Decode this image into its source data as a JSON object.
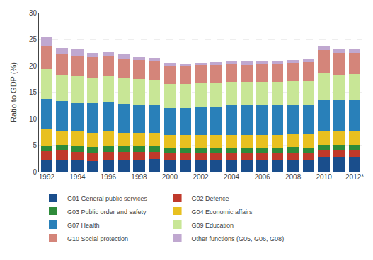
{
  "chart_data": {
    "type": "bar",
    "stacked": true,
    "ylabel": "Ratio to GDP (%)",
    "categories": [
      "1992",
      null,
      "1994",
      null,
      "1996",
      null,
      "1998",
      null,
      "2000",
      null,
      "2002",
      null,
      "2004",
      null,
      "2006",
      null,
      "2008",
      null,
      "2010",
      null,
      "2012*"
    ],
    "series": [
      {
        "name": "G01 General public services",
        "color": "#1A4E8C",
        "values": [
          2.1,
          2.2,
          2.2,
          2.0,
          2.2,
          2.2,
          2.3,
          2.4,
          2.3,
          2.3,
          2.3,
          2.3,
          2.3,
          2.3,
          2.3,
          2.3,
          2.3,
          2.3,
          2.8,
          2.8,
          2.8
        ]
      },
      {
        "name": "G02 Defence",
        "color": "#C0392B",
        "values": [
          1.8,
          1.8,
          1.6,
          1.6,
          1.6,
          1.6,
          1.5,
          1.4,
          1.3,
          1.3,
          1.3,
          1.3,
          1.3,
          1.3,
          1.3,
          1.3,
          1.3,
          1.2,
          1.2,
          1.2,
          1.2
        ]
      },
      {
        "name": "G03 Public order and safety",
        "color": "#2E8B3A",
        "values": [
          1.1,
          1.1,
          1.1,
          1.1,
          1.1,
          1.0,
          1.0,
          1.0,
          1.0,
          1.0,
          1.0,
          1.0,
          1.0,
          1.0,
          1.0,
          1.0,
          1.1,
          1.1,
          1.1,
          1.1,
          1.1
        ]
      },
      {
        "name": "G04 Economic affairs",
        "color": "#E8C020",
        "values": [
          3.0,
          2.7,
          2.7,
          2.7,
          2.7,
          2.6,
          2.6,
          2.6,
          2.4,
          2.4,
          2.4,
          2.4,
          2.4,
          2.4,
          2.4,
          2.4,
          2.5,
          2.5,
          2.7,
          2.7,
          2.7
        ]
      },
      {
        "name": "G07 Health",
        "color": "#2980B9",
        "values": [
          5.8,
          5.5,
          5.4,
          5.5,
          5.5,
          5.4,
          5.3,
          5.2,
          5.0,
          5.0,
          5.2,
          5.3,
          5.5,
          5.5,
          5.5,
          5.5,
          5.5,
          5.5,
          5.8,
          5.7,
          5.7
        ]
      },
      {
        "name": "G09 Education",
        "color": "#C8E696",
        "values": [
          5.6,
          5.0,
          5.0,
          4.8,
          5.0,
          5.0,
          4.8,
          4.8,
          4.6,
          4.6,
          4.6,
          4.5,
          4.5,
          4.4,
          4.5,
          4.5,
          4.5,
          4.5,
          5.0,
          4.8,
          4.9
        ]
      },
      {
        "name": "G10 Social protection",
        "color": "#D4857A",
        "values": [
          4.4,
          3.9,
          3.9,
          3.9,
          3.8,
          3.6,
          3.6,
          3.5,
          3.4,
          3.3,
          3.3,
          3.3,
          3.3,
          3.3,
          3.3,
          3.3,
          3.4,
          3.6,
          4.4,
          4.1,
          4.0
        ]
      },
      {
        "name": "Other functions (G05, G06, G08)",
        "color": "#C0A8D0",
        "values": [
          1.5,
          1.2,
          1.2,
          0.8,
          0.8,
          0.8,
          0.5,
          0.6,
          0.5,
          0.5,
          0.5,
          0.6,
          0.6,
          0.6,
          0.5,
          0.5,
          0.5,
          0.5,
          0.8,
          0.7,
          0.8
        ]
      }
    ],
    "ylim": [
      0,
      30
    ],
    "yticks": [
      0,
      5,
      10,
      15,
      20,
      25,
      30
    ],
    "grid": true,
    "legend": "bottom"
  }
}
